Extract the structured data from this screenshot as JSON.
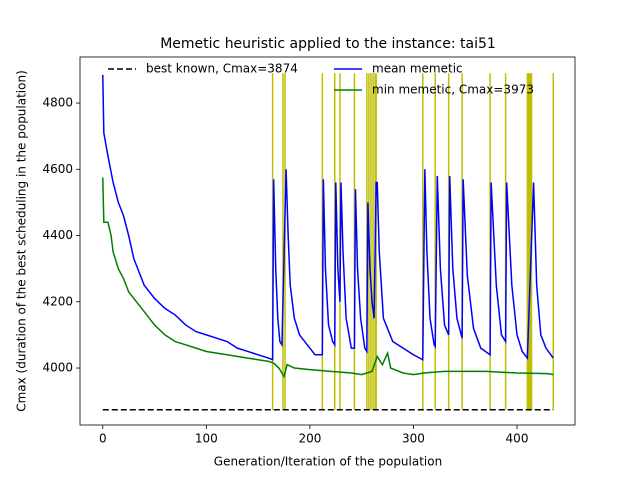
{
  "chart_data": {
    "type": "line",
    "title": "Memetic heuristic applied to the instance: tai51",
    "xlabel": "Generation/Iteration of the population",
    "ylabel": "Cmax (duration of the best scheduling in the population)",
    "xlim": [
      -22,
      456
    ],
    "ylim": [
      3828,
      4939
    ],
    "xticks": [
      0,
      100,
      200,
      300,
      400
    ],
    "yticks": [
      4000,
      4200,
      4400,
      4600,
      4800
    ],
    "legend": "upper left",
    "series": [
      {
        "name": "best known, Cmax=3874",
        "color": "#000000",
        "dash": true,
        "x": [
          0,
          435
        ],
        "values": [
          3874,
          3874
        ]
      },
      {
        "name": "mean memetic",
        "color": "#0000ff",
        "x": [
          0,
          1,
          5,
          10,
          15,
          20,
          25,
          30,
          35,
          40,
          50,
          60,
          70,
          80,
          90,
          100,
          110,
          120,
          130,
          140,
          150,
          160,
          164,
          165,
          167,
          169,
          171,
          173,
          177,
          179,
          181,
          185,
          190,
          200,
          205,
          212,
          213,
          215,
          218,
          222,
          224,
          225,
          227,
          229,
          230,
          232,
          235,
          240,
          243,
          244,
          246,
          249,
          253,
          255,
          256,
          258,
          260,
          262,
          264,
          265,
          267,
          271,
          280,
          290,
          300,
          309,
          311,
          313,
          316,
          320,
          321,
          323,
          326,
          330,
          334,
          335,
          338,
          342,
          347,
          348,
          352,
          358,
          365,
          374,
          375,
          380,
          385,
          389,
          390,
          395,
          400,
          405,
          410,
          416,
          419,
          423,
          428,
          435
        ],
        "values": [
          4885,
          4710,
          4640,
          4560,
          4500,
          4460,
          4400,
          4330,
          4290,
          4250,
          4210,
          4180,
          4160,
          4130,
          4110,
          4100,
          4090,
          4080,
          4060,
          4050,
          4040,
          4030,
          4025,
          4570,
          4300,
          4150,
          4080,
          4070,
          4600,
          4400,
          4250,
          4150,
          4100,
          4060,
          4040,
          4040,
          4570,
          4300,
          4130,
          4080,
          4070,
          4560,
          4300,
          4200,
          4560,
          4350,
          4150,
          4060,
          4060,
          4540,
          4300,
          4150,
          4060,
          4050,
          4500,
          4300,
          4200,
          4150,
          4560,
          4560,
          4350,
          4150,
          4080,
          4060,
          4040,
          4025,
          4600,
          4350,
          4150,
          4070,
          4065,
          4580,
          4300,
          4130,
          4100,
          4580,
          4300,
          4150,
          4090,
          4570,
          4280,
          4120,
          4060,
          4040,
          4560,
          4250,
          4100,
          4080,
          4560,
          4250,
          4100,
          4050,
          4030,
          4560,
          4250,
          4100,
          4060,
          4030
        ]
      },
      {
        "name": "min memetic, Cmax=3973",
        "color": "#008000",
        "x": [
          0,
          1,
          5,
          8,
          10,
          15,
          20,
          25,
          30,
          40,
          50,
          60,
          70,
          80,
          90,
          100,
          120,
          140,
          160,
          165,
          170,
          175,
          178,
          185,
          200,
          220,
          240,
          250,
          260,
          265,
          270,
          275,
          278,
          290,
          300,
          310,
          330,
          350,
          370,
          400,
          430,
          435
        ],
        "values": [
          4575,
          4440,
          4440,
          4400,
          4350,
          4300,
          4270,
          4230,
          4210,
          4170,
          4130,
          4100,
          4080,
          4070,
          4060,
          4050,
          4040,
          4030,
          4020,
          4015,
          4000,
          3975,
          4010,
          4000,
          3995,
          3990,
          3985,
          3980,
          3990,
          4035,
          4010,
          4045,
          4000,
          3985,
          3980,
          3985,
          3990,
          3990,
          3990,
          3985,
          3983,
          3980
        ]
      }
    ],
    "vlines": {
      "color": "#bfbf00",
      "ymin": 3874,
      "ymax": 4890,
      "x": [
        164,
        174,
        176,
        212,
        224,
        229,
        243,
        255,
        257,
        259,
        261,
        263,
        264,
        309,
        321,
        334,
        347,
        374,
        389,
        410,
        411,
        412,
        413,
        414,
        435
      ]
    }
  }
}
